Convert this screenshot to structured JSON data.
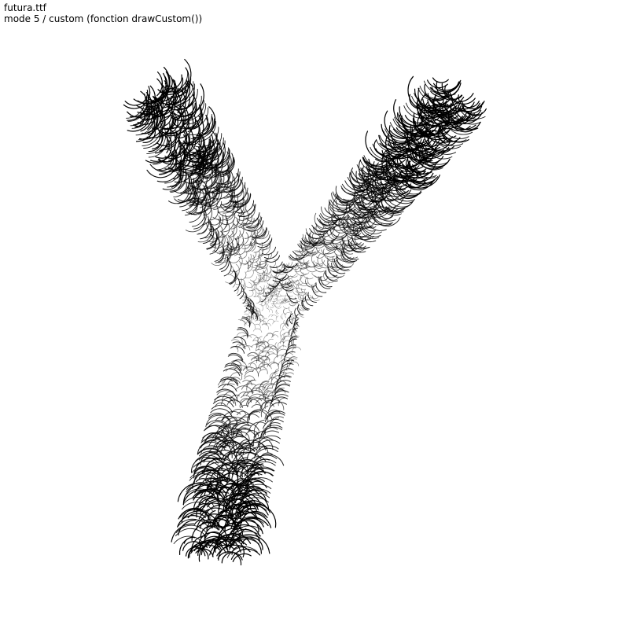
{
  "info": {
    "font_file": "futura.ttf",
    "mode_text": "mode 5 / custom (fonction drawCustom())"
  },
  "colors": {
    "background": "#ffffff",
    "stroke": "#000000"
  }
}
